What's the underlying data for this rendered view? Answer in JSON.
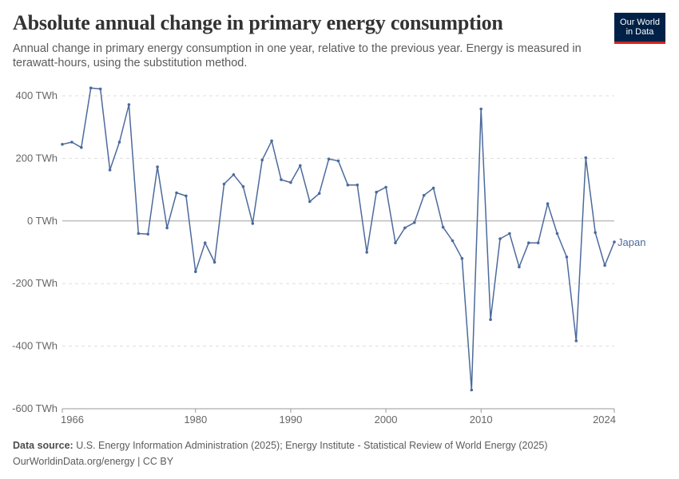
{
  "header": {
    "title": "Absolute annual change in primary energy consumption",
    "subtitle": "Annual change in primary energy consumption in one year, relative to the previous year. Energy is measured in terawatt-hours, using the substitution method."
  },
  "logo": {
    "line1": "Our World",
    "line2": "in Data"
  },
  "footer": {
    "source_label": "Data source:",
    "source_text": "U.S. Energy Information Administration (2025); Energy Institute - Statistical Review of World Energy (2025)",
    "link_text": "OurWorldinData.org/energy",
    "separator": " | ",
    "license": "CC BY"
  },
  "colors": {
    "line": "#4c6a9c",
    "grid": "#dddddd",
    "zero": "#a1a1a1",
    "text": "#666666",
    "logo_bg": "#002147",
    "logo_accent": "#ce261e"
  },
  "chart_data": {
    "type": "line",
    "grid": "horizontal-dashed",
    "ylim": [
      -600,
      400
    ],
    "yticks": [
      -600,
      -400,
      -200,
      0,
      200,
      400
    ],
    "ytick_labels": [
      "-600 TWh",
      "-400 TWh",
      "-200 TWh",
      "0 TWh",
      "200 TWh",
      "400 TWh"
    ],
    "xlim": [
      1966,
      2024
    ],
    "xticks": [
      1966,
      1980,
      1990,
      2000,
      2010,
      2024
    ],
    "xtick_labels": [
      "1966",
      "1980",
      "1990",
      "2000",
      "2010",
      "2024"
    ],
    "series": [
      {
        "name": "Japan",
        "x": [
          1966,
          1967,
          1968,
          1969,
          1970,
          1971,
          1972,
          1973,
          1974,
          1975,
          1976,
          1977,
          1978,
          1979,
          1980,
          1981,
          1982,
          1983,
          1984,
          1985,
          1986,
          1987,
          1988,
          1989,
          1990,
          1991,
          1992,
          1993,
          1994,
          1995,
          1996,
          1997,
          1998,
          1999,
          2000,
          2001,
          2002,
          2003,
          2004,
          2005,
          2006,
          2007,
          2008,
          2009,
          2010,
          2011,
          2012,
          2013,
          2014,
          2015,
          2016,
          2017,
          2018,
          2019,
          2020,
          2021,
          2022,
          2023,
          2024
        ],
        "values": [
          245,
          252,
          235,
          425,
          422,
          163,
          252,
          372,
          -40,
          -42,
          173,
          -22,
          90,
          80,
          -162,
          -70,
          -132,
          118,
          148,
          110,
          -8,
          195,
          256,
          132,
          123,
          177,
          62,
          88,
          198,
          192,
          115,
          115,
          -100,
          92,
          108,
          -70,
          -22,
          -5,
          82,
          105,
          -20,
          -63,
          -120,
          -540,
          358,
          -315,
          -57,
          -40,
          -147,
          -70,
          -70,
          55,
          -40,
          -115,
          -383,
          202,
          -37,
          -142,
          -67
        ]
      }
    ]
  }
}
